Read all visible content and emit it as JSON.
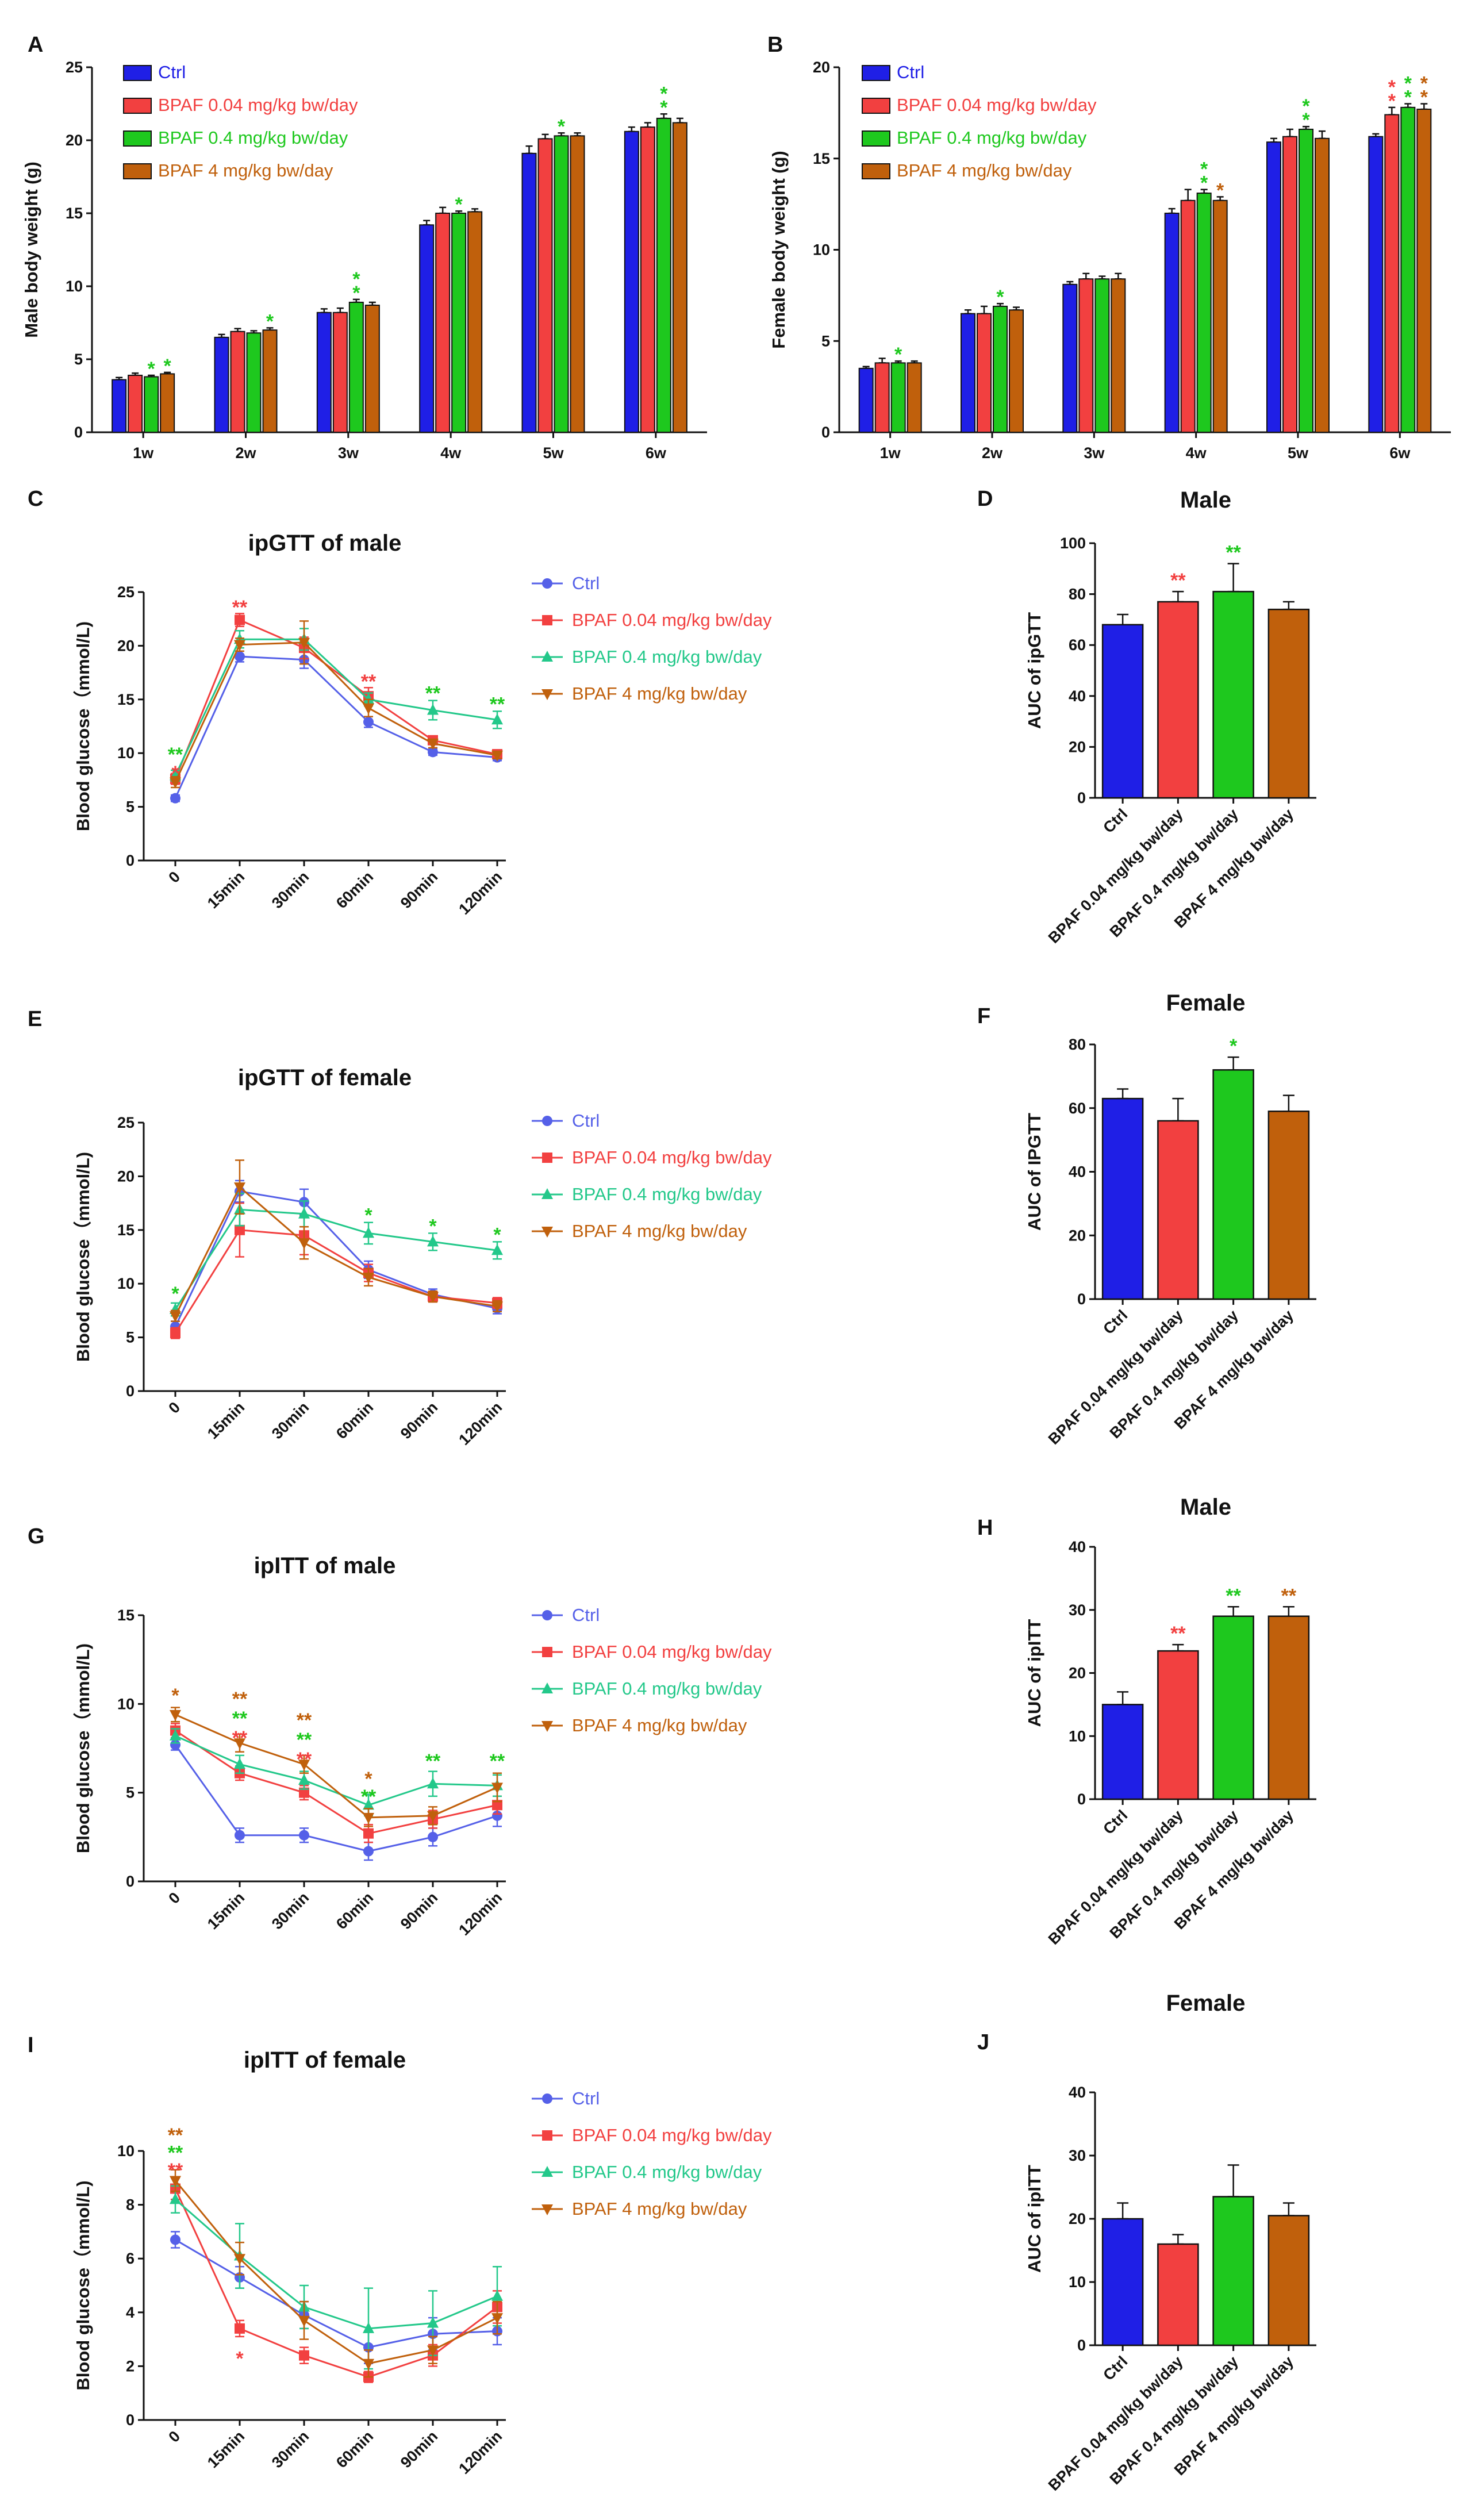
{
  "colors": {
    "ctrl": "#1f1fe6",
    "low": "#f24040",
    "mid": "#1ec81e",
    "high": "#c0600c",
    "mid_line": "#23c88a",
    "ctrl_line": "#5560e8"
  },
  "chart_data": [
    {
      "panel": "A",
      "type": "bar",
      "title": "",
      "xlabel": "",
      "ylabel": "Male body weight (g)",
      "ylim": [
        0,
        25
      ],
      "yticks": [
        "0",
        "5",
        "10",
        "15",
        "20",
        "25"
      ],
      "categories": [
        "1w",
        "2w",
        "3w",
        "4w",
        "5w",
        "6w"
      ],
      "legend": [
        "Ctrl",
        "BPAF 0.04 mg/kg bw/day",
        "BPAF 0.4 mg/kg bw/day",
        "BPAF 4 mg/kg bw/day"
      ],
      "legend_position": "top-left",
      "series": [
        {
          "name": "Ctrl",
          "values": [
            3.6,
            6.5,
            8.2,
            14.2,
            19.1,
            20.6
          ],
          "errors": [
            0.15,
            0.2,
            0.25,
            0.3,
            0.5,
            0.3
          ]
        },
        {
          "name": "BPAF 0.04 mg/kg bw/day",
          "values": [
            3.9,
            6.9,
            8.2,
            15.0,
            20.1,
            20.9
          ],
          "errors": [
            0.15,
            0.2,
            0.3,
            0.4,
            0.3,
            0.3
          ]
        },
        {
          "name": "BPAF 0.4 mg/kg bw/day",
          "values": [
            3.8,
            6.8,
            8.9,
            15.0,
            20.3,
            21.5
          ],
          "errors": [
            0.1,
            0.15,
            0.2,
            0.15,
            0.2,
            0.3
          ]
        },
        {
          "name": "BPAF 4 mg/kg bw/day",
          "values": [
            4.0,
            7.0,
            8.7,
            15.1,
            20.3,
            21.2
          ],
          "errors": [
            0.1,
            0.15,
            0.2,
            0.2,
            0.2,
            0.3
          ]
        }
      ],
      "annotations": [
        {
          "category": "1w",
          "series": 2,
          "text": "*",
          "color": "mid"
        },
        {
          "category": "1w",
          "series": 3,
          "text": "*",
          "color": "mid"
        },
        {
          "category": "2w",
          "series": 3,
          "text": "*",
          "color": "mid"
        },
        {
          "category": "3w",
          "series": 2,
          "text": "**",
          "color": "mid"
        },
        {
          "category": "4w",
          "series": 2,
          "text": "*",
          "color": "mid"
        },
        {
          "category": "5w",
          "series": 2,
          "text": "*",
          "color": "mid"
        },
        {
          "category": "6w",
          "series": 2,
          "text": "**",
          "color": "mid"
        }
      ]
    },
    {
      "panel": "B",
      "type": "bar",
      "title": "",
      "xlabel": "",
      "ylabel": "Female body weight (g)",
      "ylim": [
        0,
        20
      ],
      "yticks": [
        "0",
        "5",
        "10",
        "15",
        "20"
      ],
      "categories": [
        "1w",
        "2w",
        "3w",
        "4w",
        "5w",
        "6w"
      ],
      "legend": [
        "Ctrl",
        "BPAF 0.04 mg/kg bw/day",
        "BPAF 0.4 mg/kg bw/day",
        "BPAF 4 mg/kg bw/day"
      ],
      "legend_position": "top-left",
      "series": [
        {
          "name": "Ctrl",
          "values": [
            3.5,
            6.5,
            8.1,
            12.0,
            15.9,
            16.2
          ],
          "errors": [
            0.1,
            0.2,
            0.15,
            0.25,
            0.2,
            0.15
          ]
        },
        {
          "name": "BPAF 0.04 mg/kg bw/day",
          "values": [
            3.8,
            6.5,
            8.4,
            12.7,
            16.2,
            17.4
          ],
          "errors": [
            0.25,
            0.4,
            0.3,
            0.6,
            0.4,
            0.4
          ]
        },
        {
          "name": "BPAF 0.4 mg/kg bw/day",
          "values": [
            3.8,
            6.9,
            8.4,
            13.1,
            16.6,
            17.8
          ],
          "errors": [
            0.1,
            0.15,
            0.15,
            0.2,
            0.15,
            0.2
          ]
        },
        {
          "name": "BPAF 4 mg/kg bw/day",
          "values": [
            3.8,
            6.7,
            8.4,
            12.7,
            16.1,
            17.7
          ],
          "errors": [
            0.1,
            0.15,
            0.3,
            0.2,
            0.4,
            0.3
          ]
        }
      ],
      "annotations": [
        {
          "category": "1w",
          "series": 2,
          "text": "*",
          "color": "mid"
        },
        {
          "category": "2w",
          "series": 2,
          "text": "*",
          "color": "mid"
        },
        {
          "category": "4w",
          "series": 2,
          "text": "**",
          "color": "mid"
        },
        {
          "category": "4w",
          "series": 3,
          "text": "*",
          "color": "high"
        },
        {
          "category": "5w",
          "series": 2,
          "text": "**",
          "color": "mid"
        },
        {
          "category": "6w",
          "series": 1,
          "text": "**",
          "color": "low"
        },
        {
          "category": "6w",
          "series": 2,
          "text": "**",
          "color": "mid"
        },
        {
          "category": "6w",
          "series": 3,
          "text": "**",
          "color": "high"
        }
      ]
    },
    {
      "panel": "C",
      "type": "line",
      "title": "ipGTT of male",
      "xlabel": "",
      "ylabel": "Blood glucose（mmol/L)",
      "ylim": [
        0,
        25
      ],
      "yticks": [
        "0",
        "5",
        "10",
        "15",
        "20",
        "25"
      ],
      "categories": [
        "0",
        "15min",
        "30min",
        "60min",
        "90min",
        "120min"
      ],
      "legend": [
        "Ctrl",
        "BPAF 0.04 mg/kg bw/day",
        "BPAF 0.4 mg/kg bw/day",
        "BPAF 4 mg/kg bw/day"
      ],
      "legend_position": "right",
      "series": [
        {
          "name": "Ctrl",
          "values": [
            5.8,
            19.0,
            18.7,
            12.9,
            10.1,
            9.6
          ],
          "errors": [
            0.3,
            0.5,
            0.8,
            0.5,
            0.3,
            0.3
          ]
        },
        {
          "name": "BPAF 0.04 mg/kg bw/day",
          "values": [
            7.6,
            22.4,
            19.8,
            15.3,
            11.2,
            9.9
          ],
          "errors": [
            0.5,
            0.6,
            1.0,
            0.8,
            0.4,
            0.3
          ]
        },
        {
          "name": "BPAF 0.4 mg/kg bw/day",
          "values": [
            7.9,
            20.6,
            20.6,
            15.0,
            14.0,
            13.1
          ],
          "errors": [
            0.5,
            0.8,
            1.0,
            0.6,
            0.9,
            0.8
          ]
        },
        {
          "name": "BPAF 4 mg/kg bw/day",
          "values": [
            7.3,
            20.1,
            20.3,
            14.2,
            10.9,
            9.8
          ],
          "errors": [
            0.5,
            0.6,
            2.0,
            0.8,
            0.4,
            0.3
          ]
        }
      ],
      "annotations": [
        {
          "x": "0",
          "y": 9.9,
          "text": "**",
          "color": "mid"
        },
        {
          "x": "0",
          "y": 8.2,
          "text": "*",
          "color": "low"
        },
        {
          "x": "15min",
          "y": 23.6,
          "text": "**",
          "color": "low"
        },
        {
          "x": "60min",
          "y": 16.7,
          "text": "**",
          "color": "low"
        },
        {
          "x": "90min",
          "y": 15.6,
          "text": "**",
          "color": "mid"
        },
        {
          "x": "120min",
          "y": 14.6,
          "text": "**",
          "color": "mid"
        }
      ]
    },
    {
      "panel": "D",
      "type": "bar",
      "title": "Male",
      "xlabel": "",
      "ylabel": "AUC of ipGTT",
      "ylim": [
        0,
        100
      ],
      "yticks": [
        "0",
        "20",
        "40",
        "60",
        "80",
        "100"
      ],
      "categories": [
        "Ctrl",
        "BPAF 0.04 mg/kg bw/day",
        "BPAF 0.4 mg/kg bw/day",
        "BPAF 4 mg/kg bw/day"
      ],
      "values": [
        68,
        77,
        81,
        74
      ],
      "errors": [
        4,
        4,
        11,
        3
      ],
      "annotations": [
        {
          "category": "BPAF 0.04 mg/kg bw/day",
          "text": "**",
          "color": "low"
        },
        {
          "category": "BPAF 0.4 mg/kg bw/day",
          "text": "**",
          "color": "mid"
        }
      ]
    },
    {
      "panel": "E",
      "type": "line",
      "title": "ipGTT of female",
      "xlabel": "",
      "ylabel": "Blood glucose（mmol/L)",
      "ylim": [
        0,
        25
      ],
      "yticks": [
        "0",
        "5",
        "10",
        "15",
        "20",
        "25"
      ],
      "categories": [
        "0",
        "15min",
        "30min",
        "60min",
        "90min",
        "120min"
      ],
      "legend": [
        "Ctrl",
        "BPAF 0.04 mg/kg bw/day",
        "BPAF 0.4 mg/kg bw/day",
        "BPAF 4 mg/kg bw/day"
      ],
      "legend_position": "right",
      "series": [
        {
          "name": "Ctrl",
          "values": [
            6.0,
            18.6,
            17.6,
            11.3,
            9.0,
            7.7
          ],
          "errors": [
            0.5,
            1.0,
            1.2,
            0.8,
            0.5,
            0.5
          ]
        },
        {
          "name": "BPAF 0.04 mg/kg bw/day",
          "values": [
            5.4,
            15.0,
            14.5,
            11.0,
            8.8,
            8.2
          ],
          "errors": [
            0.5,
            2.5,
            1.8,
            0.8,
            0.5,
            0.5
          ]
        },
        {
          "name": "BPAF 0.4 mg/kg bw/day",
          "values": [
            7.6,
            16.9,
            16.5,
            14.7,
            13.9,
            13.1
          ],
          "errors": [
            0.6,
            1.5,
            1.2,
            1.0,
            0.8,
            0.8
          ]
        },
        {
          "name": "BPAF 4 mg/kg bw/day",
          "values": [
            7.0,
            19.0,
            13.8,
            10.6,
            8.8,
            7.9
          ],
          "errors": [
            0.5,
            2.5,
            1.5,
            0.8,
            0.5,
            0.5
          ]
        }
      ],
      "annotations": [
        {
          "x": "0",
          "y": 9.1,
          "text": "*",
          "color": "mid"
        },
        {
          "x": "60min",
          "y": 16.4,
          "text": "*",
          "color": "mid"
        },
        {
          "x": "90min",
          "y": 15.4,
          "text": "*",
          "color": "mid"
        },
        {
          "x": "120min",
          "y": 14.6,
          "text": "*",
          "color": "mid"
        }
      ]
    },
    {
      "panel": "F",
      "type": "bar",
      "title": "Female",
      "xlabel": "",
      "ylabel": "AUC of IPGTT",
      "ylim": [
        0,
        80
      ],
      "yticks": [
        "0",
        "20",
        "40",
        "60",
        "80"
      ],
      "categories": [
        "Ctrl",
        "BPAF 0.04 mg/kg bw/day",
        "BPAF 0.4 mg/kg bw/day",
        "BPAF 4 mg/kg bw/day"
      ],
      "values": [
        63,
        56,
        72,
        59
      ],
      "errors": [
        3,
        7,
        4,
        5
      ],
      "annotations": [
        {
          "category": "BPAF 0.4 mg/kg bw/day",
          "text": "*",
          "color": "mid"
        }
      ]
    },
    {
      "panel": "G",
      "type": "line",
      "title": "ipITT of male",
      "xlabel": "",
      "ylabel": "Blood glucose（mmol/L)",
      "ylim": [
        0,
        15
      ],
      "yticks": [
        "0",
        "5",
        "10",
        "15"
      ],
      "categories": [
        "0",
        "15min",
        "30min",
        "60min",
        "90min",
        "120min"
      ],
      "legend": [
        "Ctrl",
        "BPAF 0.04 mg/kg bw/day",
        "BPAF 0.4 mg/kg bw/day",
        "BPAF 4 mg/kg bw/day"
      ],
      "legend_position": "right",
      "series": [
        {
          "name": "Ctrl",
          "values": [
            7.7,
            2.6,
            2.6,
            1.7,
            2.5,
            3.7
          ],
          "errors": [
            0.3,
            0.4,
            0.4,
            0.5,
            0.5,
            0.6
          ]
        },
        {
          "name": "BPAF 0.04 mg/kg bw/day",
          "values": [
            8.5,
            6.1,
            5.0,
            2.7,
            3.5,
            4.3
          ],
          "errors": [
            0.4,
            0.4,
            0.4,
            0.5,
            0.5,
            0.5
          ]
        },
        {
          "name": "BPAF 0.4 mg/kg bw/day",
          "values": [
            8.2,
            6.6,
            5.7,
            4.3,
            5.5,
            5.4
          ],
          "errors": [
            0.4,
            0.5,
            0.5,
            0.6,
            0.7,
            0.6
          ]
        },
        {
          "name": "BPAF 4 mg/kg bw/day",
          "values": [
            9.4,
            7.8,
            6.6,
            3.6,
            3.7,
            5.3
          ],
          "errors": [
            0.4,
            0.5,
            0.5,
            0.5,
            0.5,
            0.8
          ]
        }
      ],
      "annotations": [
        {
          "x": "0",
          "y": 10.5,
          "text": "*",
          "color": "high"
        },
        {
          "x": "15min",
          "y": 10.3,
          "text": "**",
          "color": "high"
        },
        {
          "x": "15min",
          "y": 9.2,
          "text": "**",
          "color": "mid"
        },
        {
          "x": "15min",
          "y": 8.1,
          "text": "**",
          "color": "low"
        },
        {
          "x": "30min",
          "y": 9.1,
          "text": "**",
          "color": "high"
        },
        {
          "x": "30min",
          "y": 8.0,
          "text": "**",
          "color": "mid"
        },
        {
          "x": "30min",
          "y": 6.9,
          "text": "**",
          "color": "low"
        },
        {
          "x": "60min",
          "y": 5.8,
          "text": "*",
          "color": "high"
        },
        {
          "x": "60min",
          "y": 4.8,
          "text": "**",
          "color": "mid"
        },
        {
          "x": "90min",
          "y": 6.8,
          "text": "**",
          "color": "mid"
        },
        {
          "x": "120min",
          "y": 6.8,
          "text": "**",
          "color": "mid"
        }
      ]
    },
    {
      "panel": "H",
      "type": "bar",
      "title": "Male",
      "xlabel": "",
      "ylabel": "AUC of ipITT",
      "ylim": [
        0,
        40
      ],
      "yticks": [
        "0",
        "10",
        "20",
        "30",
        "40"
      ],
      "categories": [
        "Ctrl",
        "BPAF 0.04 mg/kg bw/day",
        "BPAF 0.4 mg/kg bw/day",
        "BPAF 4 mg/kg bw/day"
      ],
      "values": [
        15,
        23.5,
        29,
        29
      ],
      "errors": [
        2,
        1,
        1.5,
        1.5
      ],
      "annotations": [
        {
          "category": "BPAF 0.04 mg/kg bw/day",
          "text": "**",
          "color": "low"
        },
        {
          "category": "BPAF 0.4 mg/kg bw/day",
          "text": "**",
          "color": "mid"
        },
        {
          "category": "BPAF 4 mg/kg bw/day",
          "text": "**",
          "color": "high"
        }
      ]
    },
    {
      "panel": "I",
      "type": "line",
      "title": "ipITT of female",
      "xlabel": "",
      "ylabel": "Blood glucose（mmol/L)",
      "ylim": [
        0,
        10
      ],
      "yticks": [
        "0",
        "2",
        "4",
        "6",
        "8",
        "10"
      ],
      "categories": [
        "0",
        "15min",
        "30min",
        "60min",
        "90min",
        "120min"
      ],
      "legend": [
        "Ctrl",
        "BPAF 0.04 mg/kg bw/day",
        "BPAF 0.4 mg/kg bw/day",
        "BPAF 4 mg/kg bw/day"
      ],
      "legend_position": "right",
      "series": [
        {
          "name": "Ctrl",
          "values": [
            6.7,
            5.3,
            3.9,
            2.7,
            3.2,
            3.3
          ],
          "errors": [
            0.3,
            0.4,
            0.5,
            0.6,
            0.6,
            0.5
          ]
        },
        {
          "name": "BPAF 0.04 mg/kg bw/day",
          "values": [
            8.6,
            3.4,
            2.4,
            1.6,
            2.4,
            4.2
          ],
          "errors": [
            0.4,
            0.3,
            0.3,
            0.2,
            0.4,
            0.6
          ]
        },
        {
          "name": "BPAF 0.4 mg/kg bw/day",
          "values": [
            8.2,
            6.1,
            4.2,
            3.4,
            3.6,
            4.6
          ],
          "errors": [
            0.5,
            1.2,
            0.8,
            1.5,
            1.2,
            1.1
          ]
        },
        {
          "name": "BPAF 4 mg/kg bw/day",
          "values": [
            8.9,
            6.0,
            3.7,
            2.1,
            2.6,
            3.8
          ],
          "errors": [
            0.4,
            0.6,
            0.7,
            0.5,
            0.5,
            0.6
          ]
        }
      ],
      "annotations": [
        {
          "x": "0",
          "y": 10.6,
          "text": "**",
          "color": "high"
        },
        {
          "x": "0",
          "y": 9.95,
          "text": "**",
          "color": "mid"
        },
        {
          "x": "0",
          "y": 9.3,
          "text": "**",
          "color": "low"
        },
        {
          "x": "15min",
          "y": 2.3,
          "text": "*",
          "color": "low"
        }
      ]
    },
    {
      "panel": "J",
      "type": "bar",
      "title": "Female",
      "xlabel": "",
      "ylabel": "AUC of ipITT",
      "ylim": [
        0,
        40
      ],
      "yticks": [
        "0",
        "10",
        "20",
        "30",
        "40"
      ],
      "categories": [
        "Ctrl",
        "BPAF 0.04 mg/kg bw/day",
        "BPAF 0.4 mg/kg bw/day",
        "BPAF 4 mg/kg bw/day"
      ],
      "values": [
        20,
        16,
        23.5,
        20.5
      ],
      "errors": [
        2.5,
        1.5,
        5,
        2
      ],
      "annotations": []
    }
  ]
}
